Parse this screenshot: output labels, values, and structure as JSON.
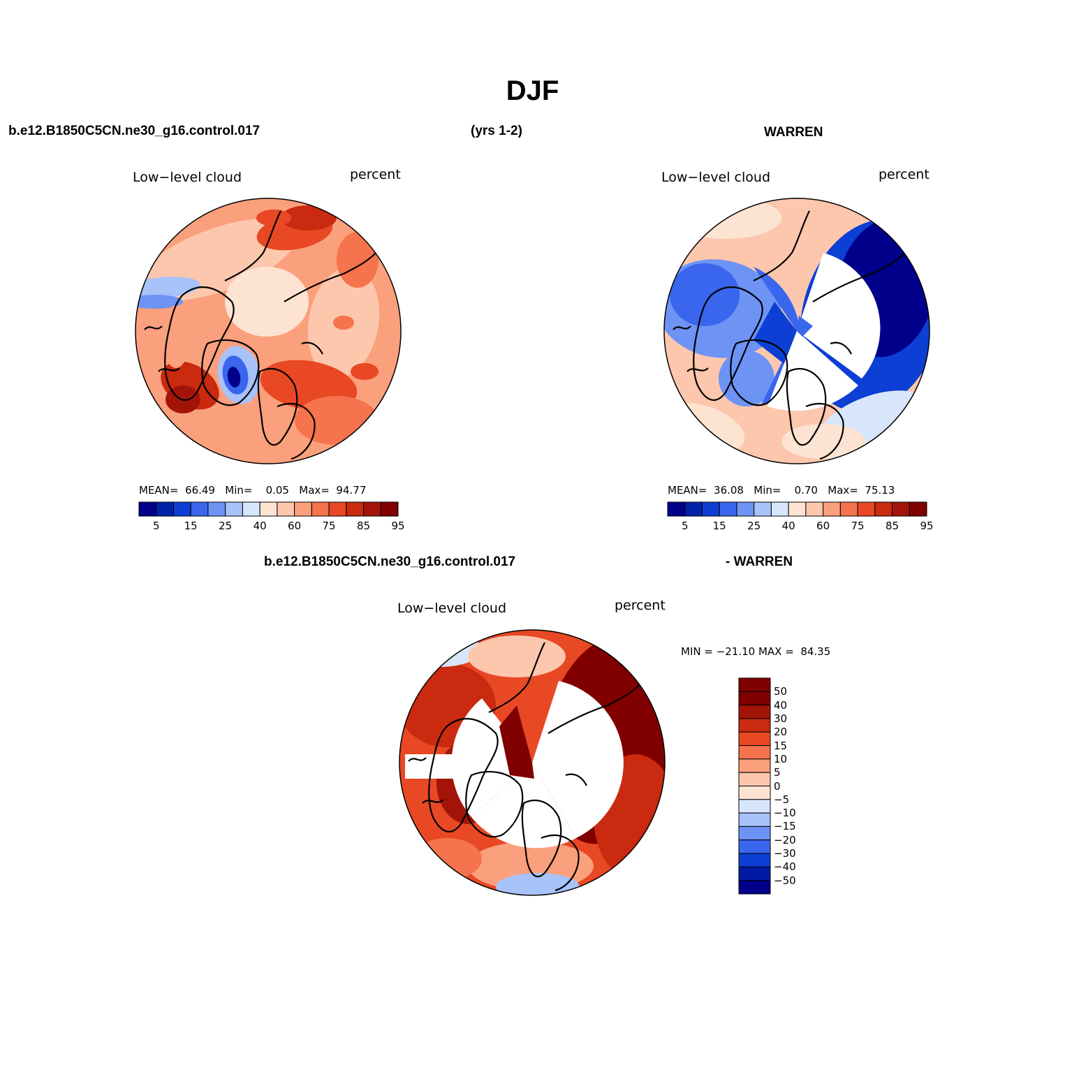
{
  "title": "DJF",
  "header": {
    "case": "b.e12.B1850C5CN.ne30_g16.control.017",
    "years": "(yrs 1-2)",
    "obs": "WARREN"
  },
  "diff_header": {
    "case": "b.e12.B1850C5CN.ne30_g16.control.017",
    "obs": "- WARREN"
  },
  "colors": {
    "scale": [
      "#00008b",
      "#0022aa",
      "#0d3fd4",
      "#3a66ee",
      "#6d93f5",
      "#a8c2fa",
      "#d8e6fc",
      "#fde4d2",
      "#fcc7ad",
      "#fba07c",
      "#f5734d",
      "#e84824",
      "#c92a10",
      "#a31408",
      "#800000"
    ],
    "diff_scale": [
      "#00008b",
      "#001aa6",
      "#0d3fd4",
      "#3a66ee",
      "#6d93f5",
      "#a8c2fa",
      "#d8e6fc",
      "#fde4d2",
      "#fcc7ad",
      "#fba07c",
      "#f5734d",
      "#e84824",
      "#c92a10",
      "#a31408",
      "#800000"
    ]
  },
  "panels": [
    {
      "variable": "Low−level cloud",
      "units": "percent",
      "mean_label": "MEAN=",
      "mean": "66.49",
      "min_label": "Min=",
      "min": "0.05",
      "max_label": "Max=",
      "max": "94.77",
      "colorbar_ticks": [
        "5",
        "15",
        "25",
        "40",
        "60",
        "75",
        "85",
        "95"
      ],
      "field": "model"
    },
    {
      "variable": "Low−level cloud",
      "units": "percent",
      "mean_label": "MEAN=",
      "mean": "36.08",
      "min_label": "Min=",
      "min": "0.70",
      "max_label": "Max=",
      "max": "75.13",
      "colorbar_ticks": [
        "5",
        "15",
        "25",
        "40",
        "60",
        "75",
        "85",
        "95"
      ],
      "field": "obs"
    }
  ],
  "diff_panel": {
    "variable": "Low−level cloud",
    "units": "percent",
    "minmax": "MIN = −21.10 MAX =  84.35",
    "colorbar_ticks": [
      "50",
      "40",
      "30",
      "20",
      "15",
      "10",
      "5",
      "0",
      "−5",
      "−10",
      "−15",
      "−20",
      "−30",
      "−40",
      "−50"
    ]
  }
}
